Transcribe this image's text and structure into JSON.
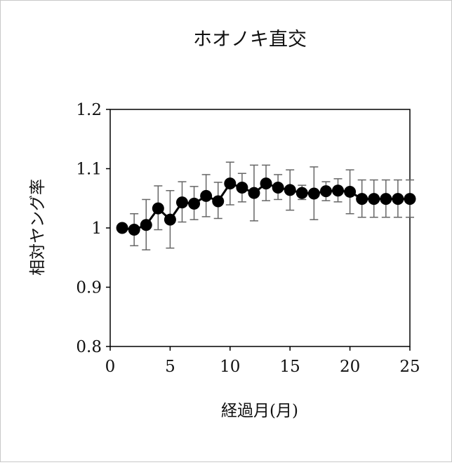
{
  "chart_data": {
    "type": "line",
    "title": "ホオノキ直交",
    "xlabel": "経過月(月)",
    "ylabel": "相対ヤング率",
    "xlim": [
      0,
      25
    ],
    "ylim": [
      0.8,
      1.2
    ],
    "xticks": [
      0,
      5,
      10,
      15,
      20,
      25
    ],
    "yticks": [
      0.8,
      0.9,
      1.0,
      1.1,
      1.2
    ],
    "xtick_labels": [
      "0",
      "5",
      "10",
      "15",
      "20",
      "25"
    ],
    "ytick_labels": [
      "0.8",
      "0.9",
      "1",
      "1.1",
      "1.2"
    ],
    "grid": false,
    "legend": "none",
    "series": [
      {
        "color": "#000000",
        "error_color": "#666666",
        "x": [
          1,
          2,
          3,
          4,
          5,
          6,
          7,
          8,
          9,
          10,
          11,
          12,
          13,
          14,
          15,
          16,
          17,
          18,
          19,
          20,
          21,
          22,
          23,
          24,
          25
        ],
        "y": [
          1.0,
          0.997,
          1.005,
          1.033,
          1.014,
          1.043,
          1.041,
          1.054,
          1.045,
          1.075,
          1.068,
          1.059,
          1.075,
          1.068,
          1.064,
          1.059,
          1.058,
          1.062,
          1.063,
          1.061,
          1.049,
          1.049,
          1.049,
          1.049,
          1.049
        ],
        "yerr_low": [
          1.0,
          0.97,
          0.963,
          0.997,
          0.966,
          1.01,
          1.014,
          1.019,
          1.016,
          1.039,
          1.044,
          1.012,
          1.046,
          1.048,
          1.03,
          1.048,
          1.014,
          1.046,
          1.044,
          1.024,
          1.018,
          1.018,
          1.018,
          1.018,
          1.018
        ],
        "yerr_high": [
          1.0,
          1.024,
          1.048,
          1.071,
          1.063,
          1.078,
          1.07,
          1.09,
          1.077,
          1.111,
          1.092,
          1.106,
          1.106,
          1.09,
          1.098,
          1.072,
          1.103,
          1.078,
          1.083,
          1.098,
          1.081,
          1.081,
          1.081,
          1.081,
          1.081
        ]
      }
    ]
  }
}
